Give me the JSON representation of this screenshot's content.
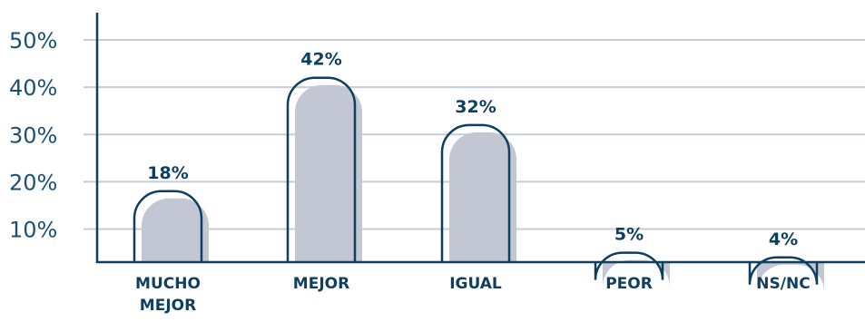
{
  "colors": {
    "bar_fill": "#c3c7d4",
    "bar_outline": "#0f3f5f",
    "grid": "#c7ccd8",
    "axis": "#0f3f5f",
    "text": "#0f3f5f"
  },
  "chart_data": {
    "type": "bar",
    "categories": [
      [
        "MUCHO",
        "MEJOR"
      ],
      [
        "MEJOR"
      ],
      [
        "IGUAL"
      ],
      [
        "PEOR"
      ],
      [
        "NS/NC"
      ]
    ],
    "values": [
      18,
      42,
      32,
      5,
      4
    ],
    "value_labels": [
      "18%",
      "42%",
      "32%",
      "5%",
      "4%"
    ],
    "yticks": [
      "10%",
      "20%",
      "30%",
      "40%",
      "50%"
    ],
    "ytick_values": [
      10,
      20,
      30,
      40,
      50
    ],
    "ylim": [
      3,
      50
    ],
    "grid": true,
    "title": "",
    "xlabel": "",
    "ylabel": ""
  }
}
